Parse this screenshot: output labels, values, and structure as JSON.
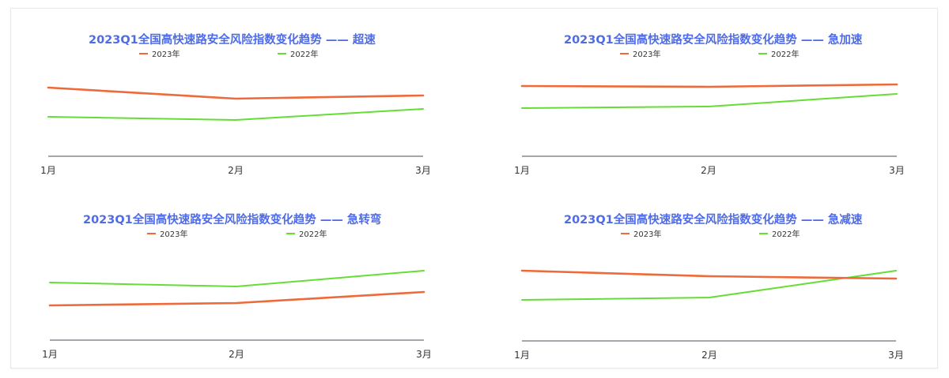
{
  "colors": {
    "title": "#4f6ce6",
    "series_2023": "#ee6a3a",
    "series_2022": "#66dd33",
    "axis": "#6e7079",
    "frame_border": "#e8e8e8"
  },
  "chart_data": [
    {
      "type": "line",
      "title": "2023Q1全国高快速路安全风险指数变化趋势 —— 超速",
      "categories": [
        "1月",
        "2月",
        "3月"
      ],
      "series": [
        {
          "name": "2023年",
          "color": "#ee6a3a",
          "values": [
            87,
            73,
            77
          ]
        },
        {
          "name": "2022年",
          "color": "#66dd33",
          "values": [
            50,
            46,
            60
          ]
        }
      ],
      "xlabel": "",
      "ylabel": "",
      "ylim": [
        0,
        100
      ],
      "grid": false,
      "legend_position": "top"
    },
    {
      "type": "line",
      "title": "2023Q1全国高快速路安全风险指数变化趋势 —— 急加速",
      "categories": [
        "1月",
        "2月",
        "3月"
      ],
      "series": [
        {
          "name": "2023年",
          "color": "#ee6a3a",
          "values": [
            89,
            88,
            91
          ]
        },
        {
          "name": "2022年",
          "color": "#66dd33",
          "values": [
            61,
            63,
            79
          ]
        }
      ],
      "xlabel": "",
      "ylabel": "",
      "ylim": [
        0,
        100
      ],
      "grid": false,
      "legend_position": "top"
    },
    {
      "type": "line",
      "title": "2023Q1全国高快速路安全风险指数变化趋势 —— 急转弯",
      "categories": [
        "1月",
        "2月",
        "3月"
      ],
      "series": [
        {
          "name": "2023年",
          "color": "#ee6a3a",
          "values": [
            44,
            47,
            61
          ]
        },
        {
          "name": "2022年",
          "color": "#66dd33",
          "values": [
            73,
            68,
            88
          ]
        }
      ],
      "xlabel": "",
      "ylabel": "",
      "ylim": [
        0,
        100
      ],
      "grid": false,
      "legend_position": "top"
    },
    {
      "type": "line",
      "title": "2023Q1全国高快速路安全风险指数变化趋势 —— 急减速",
      "categories": [
        "1月",
        "2月",
        "3月"
      ],
      "series": [
        {
          "name": "2023年",
          "color": "#ee6a3a",
          "values": [
            89,
            82,
            79
          ]
        },
        {
          "name": "2022年",
          "color": "#66dd33",
          "values": [
            52,
            55,
            89
          ]
        }
      ],
      "xlabel": "",
      "ylabel": "",
      "ylim": [
        0,
        100
      ],
      "grid": false,
      "legend_position": "top"
    }
  ]
}
